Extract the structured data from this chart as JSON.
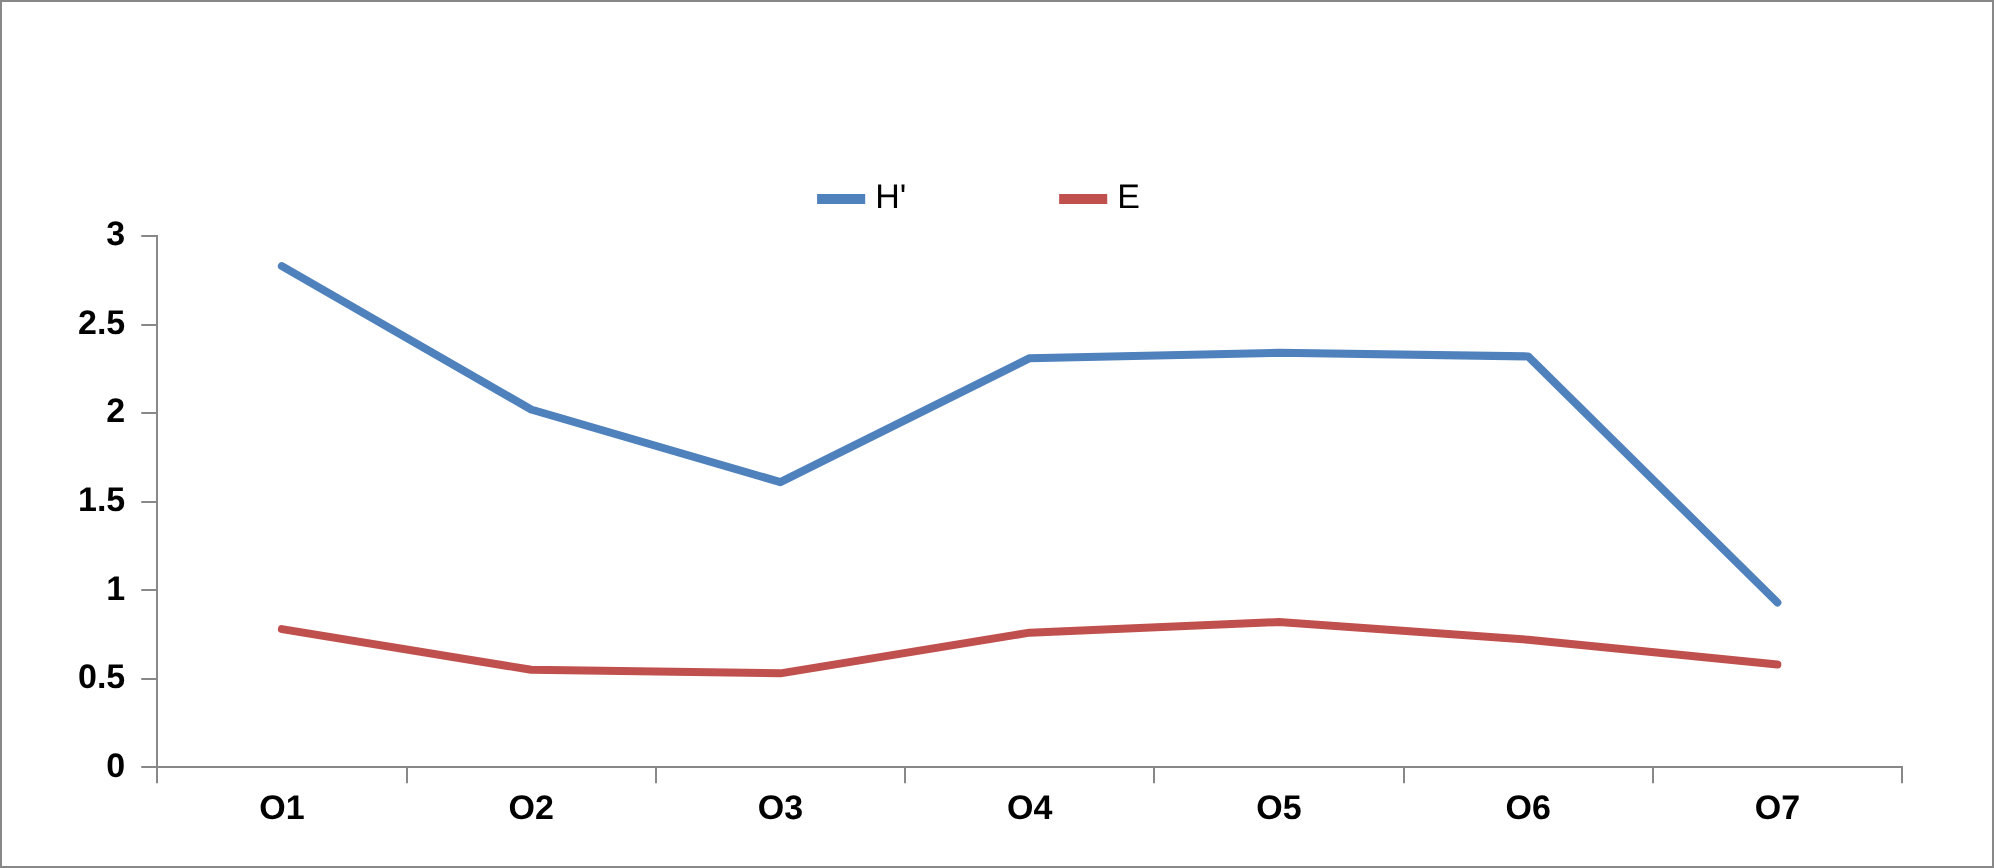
{
  "chart_data": {
    "type": "line",
    "categories": [
      "O1",
      "O2",
      "O3",
      "O4",
      "O5",
      "O6",
      "O7"
    ],
    "series": [
      {
        "name": "H'",
        "color": "#4f81bd",
        "values": [
          2.83,
          2.02,
          1.61,
          2.31,
          2.34,
          2.32,
          0.93
        ]
      },
      {
        "name": "E",
        "color": "#c0504d",
        "values": [
          0.78,
          0.55,
          0.53,
          0.76,
          0.82,
          0.72,
          0.58
        ]
      }
    ],
    "ylim": [
      0,
      3
    ],
    "yticks": [
      0,
      0.5,
      1,
      1.5,
      2,
      2.5,
      3
    ],
    "grid": false,
    "legend": "top",
    "marker": "none",
    "line_style": "solid"
  }
}
